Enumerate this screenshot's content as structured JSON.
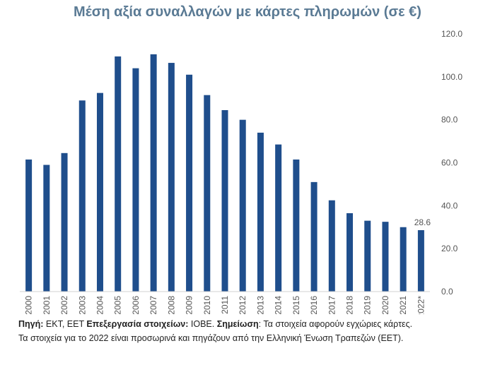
{
  "chart_data": {
    "type": "bar",
    "title": "Μέση αξία συναλλαγών με κάρτες πληρωμών (σε €)",
    "xlabel": "",
    "ylabel": "",
    "categories": [
      "2000",
      "2001",
      "2002",
      "2003",
      "2004",
      "2005",
      "2006",
      "2007",
      "2008",
      "2009",
      "2010",
      "2011",
      "2012",
      "2013",
      "2014",
      "2015",
      "2016",
      "2017",
      "2018",
      "2019",
      "2020",
      "2021",
      "2022*"
    ],
    "values": [
      61.5,
      59.0,
      64.5,
      89.0,
      92.5,
      109.5,
      104.0,
      110.5,
      106.5,
      101.0,
      91.5,
      84.5,
      80.0,
      74.0,
      68.5,
      61.5,
      51.0,
      42.5,
      36.5,
      33.0,
      32.5,
      30.0,
      28.6
    ],
    "ylim": [
      0,
      120
    ],
    "yticks": [
      "0.0",
      "20.0",
      "40.0",
      "60.0",
      "80.0",
      "100.0",
      "120.0"
    ],
    "data_labels": [
      {
        "index": 22,
        "text": "28.6"
      }
    ],
    "grid": false,
    "bar_color": "#1f4e8c",
    "axis_position": "right"
  },
  "footer": {
    "line1_source_label": "Πηγή:",
    "line1_source_text": " ΕΚΤ, ΕΕΤ ",
    "line1_processing_label": "Επεξεργασία στοιχείων:",
    "line1_processing_text": " ΙΟΒΕ. ",
    "line1_note_label": "Σημείωση",
    "line1_note_text": ": Τα στοιχεία αφορούν εγχώριες κάρτες.",
    "line2": "Τα στοιχεία για το 2022 είναι προσωρινά και πηγάζουν από την Ελληνική Ένωση Τραπεζών (ΕΕΤ)."
  }
}
